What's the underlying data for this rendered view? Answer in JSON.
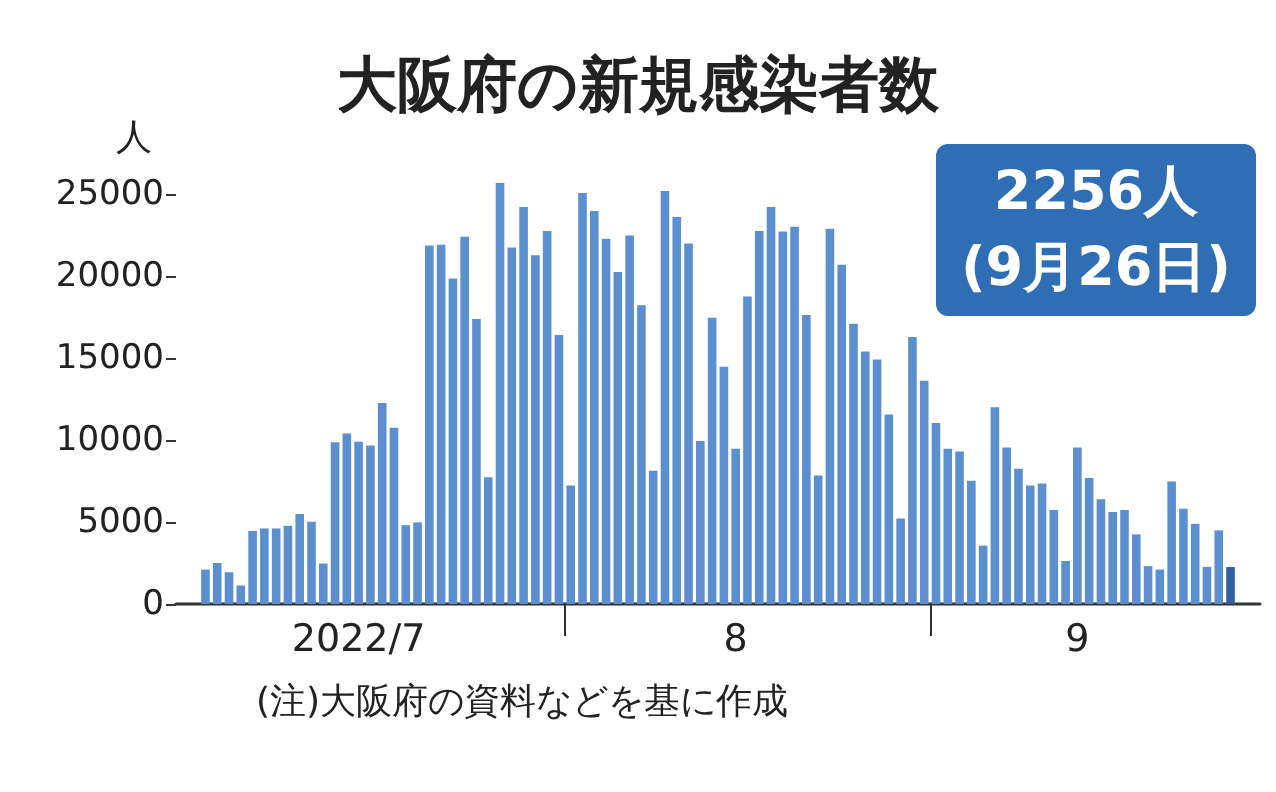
{
  "chart_data": {
    "type": "bar",
    "title": "大阪府の新規感染者数",
    "ylabel": "人",
    "annotations": [
      "2256人\n(9月26日)",
      "(注)大阪府の資料などを基に作成"
    ],
    "x": [
      "2022-07-01",
      "2022-07-02",
      "2022-07-03",
      "2022-07-04",
      "2022-07-05",
      "2022-07-06",
      "2022-07-07",
      "2022-07-08",
      "2022-07-09",
      "2022-07-10",
      "2022-07-11",
      "2022-07-12",
      "2022-07-13",
      "2022-07-14",
      "2022-07-15",
      "2022-07-16",
      "2022-07-17",
      "2022-07-18",
      "2022-07-19",
      "2022-07-20",
      "2022-07-21",
      "2022-07-22",
      "2022-07-23",
      "2022-07-24",
      "2022-07-25",
      "2022-07-26",
      "2022-07-27",
      "2022-07-28",
      "2022-07-29",
      "2022-07-30",
      "2022-07-31",
      "2022-08-01",
      "2022-08-02",
      "2022-08-03",
      "2022-08-04",
      "2022-08-05",
      "2022-08-06",
      "2022-08-07",
      "2022-08-08",
      "2022-08-09",
      "2022-08-10",
      "2022-08-11",
      "2022-08-12",
      "2022-08-13",
      "2022-08-14",
      "2022-08-15",
      "2022-08-16",
      "2022-08-17",
      "2022-08-18",
      "2022-08-19",
      "2022-08-20",
      "2022-08-21",
      "2022-08-22",
      "2022-08-23",
      "2022-08-24",
      "2022-08-25",
      "2022-08-26",
      "2022-08-27",
      "2022-08-28",
      "2022-08-29",
      "2022-08-30",
      "2022-08-31",
      "2022-09-01",
      "2022-09-02",
      "2022-09-03",
      "2022-09-04",
      "2022-09-05",
      "2022-09-06",
      "2022-09-07",
      "2022-09-08",
      "2022-09-09",
      "2022-09-10",
      "2022-09-11",
      "2022-09-12",
      "2022-09-13",
      "2022-09-14",
      "2022-09-15",
      "2022-09-16",
      "2022-09-17",
      "2022-09-18",
      "2022-09-19",
      "2022-09-20",
      "2022-09-21",
      "2022-09-22",
      "2022-09-23",
      "2022-09-24",
      "2022-09-25",
      "2022-09-26"
    ],
    "values": [
      2100,
      2500,
      1940,
      1130,
      4450,
      4610,
      4610,
      4770,
      5500,
      5020,
      2470,
      9870,
      10400,
      9910,
      9670,
      12260,
      10760,
      4810,
      4980,
      21880,
      21920,
      19860,
      22410,
      17390,
      7730,
      25690,
      21760,
      24230,
      21280,
      22770,
      16420,
      7240,
      25080,
      23990,
      22290,
      20270,
      22490,
      18240,
      8130,
      25200,
      23620,
      22000,
      9950,
      17470,
      14480,
      9470,
      18770,
      22770,
      24230,
      22730,
      23020,
      17640,
      7850,
      22900,
      20710,
      17110,
      15410,
      14930,
      11570,
      5220,
      16300,
      13630,
      11040,
      9470,
      9300,
      7520,
      3560,
      12010,
      9550,
      8250,
      7240,
      7360,
      5740,
      2630,
      9550,
      7690,
      6390,
      5620,
      5740,
      4250,
      2310,
      2100,
      7480,
      5820,
      4890,
      2270,
      4490,
      2256
    ],
    "colors": [
      "#5b8fd0",
      "#5b8fd0",
      "#5b8fd0",
      "#5b8fd0",
      "#5b8fd0",
      "#5b8fd0",
      "#5b8fd0",
      "#5b8fd0",
      "#5b8fd0",
      "#5b8fd0",
      "#5b8fd0",
      "#5b8fd0",
      "#5b8fd0",
      "#5b8fd0",
      "#5b8fd0",
      "#5b8fd0",
      "#5b8fd0",
      "#5b8fd0",
      "#5b8fd0",
      "#5b8fd0",
      "#5b8fd0",
      "#5b8fd0",
      "#5b8fd0",
      "#5b8fd0",
      "#5b8fd0",
      "#5b8fd0",
      "#5b8fd0",
      "#5b8fd0",
      "#5b8fd0",
      "#5b8fd0",
      "#5b8fd0",
      "#5b8fd0",
      "#5b8fd0",
      "#5b8fd0",
      "#5b8fd0",
      "#5b8fd0",
      "#5b8fd0",
      "#5b8fd0",
      "#5b8fd0",
      "#5b8fd0",
      "#5b8fd0",
      "#5b8fd0",
      "#5b8fd0",
      "#5b8fd0",
      "#5b8fd0",
      "#5b8fd0",
      "#5b8fd0",
      "#5b8fd0",
      "#5b8fd0",
      "#5b8fd0",
      "#5b8fd0",
      "#5b8fd0",
      "#5b8fd0",
      "#5b8fd0",
      "#5b8fd0",
      "#5b8fd0",
      "#5b8fd0",
      "#5b8fd0",
      "#5b8fd0",
      "#5b8fd0",
      "#5b8fd0",
      "#5b8fd0",
      "#5b8fd0",
      "#5b8fd0",
      "#5b8fd0",
      "#5b8fd0",
      "#5b8fd0",
      "#5b8fd0",
      "#5b8fd0",
      "#5b8fd0",
      "#5b8fd0",
      "#5b8fd0",
      "#5b8fd0",
      "#5b8fd0",
      "#5b8fd0",
      "#5b8fd0",
      "#5b8fd0",
      "#5b8fd0",
      "#5b8fd0",
      "#5b8fd0",
      "#5b8fd0",
      "#5b8fd0",
      "#5b8fd0",
      "#5b8fd0",
      "#5b8fd0",
      "#5b8fd0",
      "#5b8fd0",
      "#2f5f9e"
    ],
    "xlim": [
      "2022-06-28T12:00",
      "2022-09-28T12:00"
    ],
    "xticks": [
      {
        "value": "2022-07-14",
        "label": "2022/7"
      },
      {
        "value": "2022-07-31T12:00",
        "label": null
      },
      {
        "value": "2022-08-15",
        "label": "8"
      },
      {
        "value": "2022-08-31T12:00",
        "label": null
      },
      {
        "value": "2022-09-13",
        "label": "9"
      }
    ],
    "ylim": [
      0,
      26000
    ],
    "yticks": [
      0,
      5000,
      10000,
      15000,
      20000,
      25000
    ],
    "grid": false
  }
}
